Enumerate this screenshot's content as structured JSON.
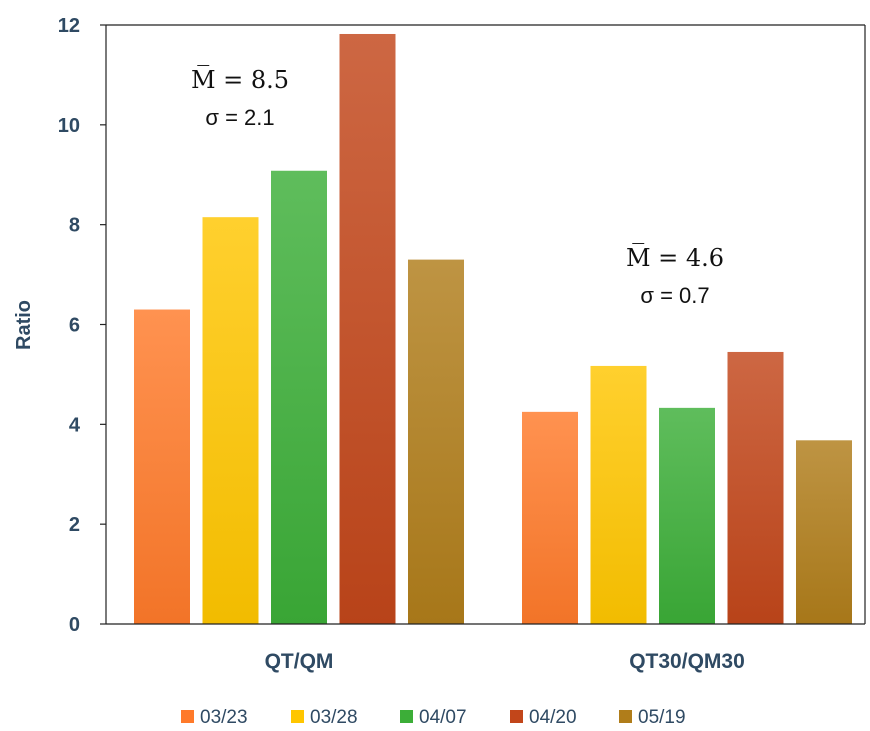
{
  "chart_data": {
    "type": "bar",
    "title": "",
    "xlabel": "",
    "ylabel": "Ratio",
    "ylim": [
      0,
      12
    ],
    "yticks": [
      0,
      2,
      4,
      6,
      8,
      10,
      12
    ],
    "grid": false,
    "legend_position": "bottom",
    "categories": [
      "QT/QM",
      "QT30/QM30"
    ],
    "series": [
      {
        "name": "03/23",
        "values": [
          6.3,
          4.25
        ],
        "color": "#ff7a2a"
      },
      {
        "name": "03/28",
        "values": [
          8.15,
          5.17
        ],
        "color": "#ffc600"
      },
      {
        "name": "04/07",
        "values": [
          9.08,
          4.33
        ],
        "color": "#3cae38"
      },
      {
        "name": "04/20",
        "values": [
          11.82,
          5.45
        ],
        "color": "#c2461a"
      },
      {
        "name": "05/19",
        "values": [
          7.3,
          3.68
        ],
        "color": "#b07d1a"
      }
    ],
    "annotations": [
      {
        "category": "QT/QM",
        "mean_label": "M̅ = 8.5",
        "sigma_label": "σ = 2.1"
      },
      {
        "category": "QT30/QM30",
        "mean_label": "M̅ = 4.6",
        "sigma_label": "σ = 0.7"
      }
    ]
  }
}
